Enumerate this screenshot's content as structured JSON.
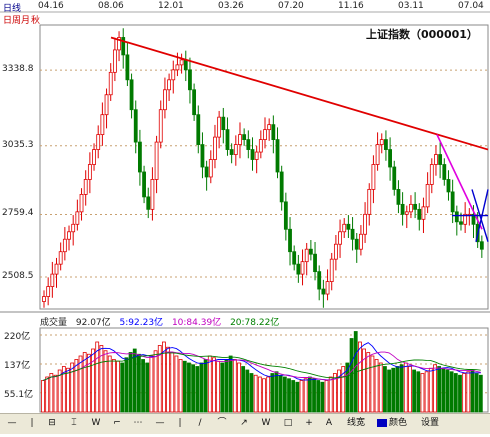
{
  "header": {
    "period_tabs": [
      "日线",
      "日周月",
      "秋"
    ],
    "dates": [
      "04.16",
      "08.06",
      "12.01",
      "03.26",
      "07.20",
      "11.16",
      "03.11",
      "07.04"
    ]
  },
  "title": "上证指数（000001）",
  "price_axis": {
    "ticks": [
      "3338.8",
      "3035.3",
      "2759.4",
      "2508.5"
    ]
  },
  "volume": {
    "label": "成交量",
    "total": "92.07亿",
    "ma5": "5:92.23亿",
    "ma10": "10:84.39亿",
    "ma20": "20:78.22亿",
    "ticks": [
      "220亿",
      "137亿",
      "55.1亿"
    ],
    "colors": {
      "ma5": "#0000ff",
      "ma10": "#c000c0",
      "ma20": "#008000"
    }
  },
  "toolbar": {
    "items": [
      "—",
      "|",
      "⊟",
      "⌶",
      "W",
      "⌐",
      "⋯",
      "—",
      "|",
      "/",
      "⌒",
      "↗",
      "W",
      "□",
      "+",
      "A",
      "线宽",
      "颜色",
      "设置"
    ]
  },
  "colors": {
    "up": "#e00000",
    "down": "#007a00",
    "trend_red": "#e00000",
    "trend_magenta": "#e000e0",
    "trend_blue": "#0000d0"
  },
  "chart_data": {
    "type": "candlestick",
    "title": "上证指数（000001）",
    "x_ticks": [
      "04.16",
      "08.06",
      "12.01",
      "03.26",
      "07.20",
      "11.16",
      "03.11",
      "07.04"
    ],
    "y_ticks": [
      3338.8,
      3035.3,
      2759.4,
      2508.5
    ],
    "ylim": [
      2380,
      3520
    ],
    "close_series": [
      2430,
      2470,
      2520,
      2560,
      2610,
      2660,
      2690,
      2720,
      2770,
      2840,
      2900,
      2960,
      3020,
      3080,
      3160,
      3240,
      3330,
      3420,
      3470,
      3400,
      3300,
      3180,
      3050,
      2930,
      2830,
      2780,
      2900,
      3050,
      3180,
      3260,
      3300,
      3340,
      3360,
      3380,
      3340,
      3260,
      3160,
      3040,
      2950,
      2910,
      2980,
      3070,
      3150,
      3100,
      3020,
      3000,
      3040,
      3080,
      3060,
      3020,
      2980,
      3010,
      3060,
      3100,
      3120,
      3060,
      2930,
      2810,
      2700,
      2610,
      2560,
      2520,
      2570,
      2620,
      2600,
      2530,
      2460,
      2440,
      2490,
      2580,
      2640,
      2690,
      2720,
      2700,
      2660,
      2620,
      2680,
      2760,
      2860,
      2960,
      3040,
      3060,
      3020,
      2950,
      2860,
      2800,
      2760,
      2770,
      2800,
      2780,
      2740,
      2790,
      2880,
      2960,
      3000,
      2960,
      2900,
      2850,
      2770,
      2730,
      2720,
      2760,
      2760,
      2720,
      2650,
      2620
    ],
    "volume_series": [
      90,
      100,
      110,
      105,
      120,
      130,
      125,
      140,
      150,
      160,
      170,
      165,
      180,
      200,
      190,
      175,
      160,
      150,
      145,
      140,
      155,
      170,
      180,
      165,
      150,
      140,
      160,
      175,
      190,
      200,
      185,
      170,
      160,
      150,
      145,
      140,
      135,
      130,
      140,
      150,
      160,
      155,
      145,
      140,
      150,
      160,
      150,
      140,
      130,
      120,
      110,
      105,
      100,
      95,
      100,
      110,
      115,
      105,
      100,
      95,
      90,
      85,
      90,
      95,
      100,
      95,
      90,
      85,
      90,
      100,
      110,
      120,
      130,
      140,
      210,
      230,
      200,
      180,
      170,
      160,
      150,
      140,
      130,
      120,
      125,
      130,
      135,
      140,
      130,
      120,
      115,
      110,
      115,
      125,
      135,
      130,
      125,
      120,
      115,
      110,
      105,
      110,
      115,
      120,
      110,
      105
    ],
    "trendlines": [
      {
        "color": "red",
        "from": [
          "08.06",
          3470
        ],
        "to": [
          "07.04+",
          3020
        ]
      },
      {
        "color": "magenta",
        "from": [
          "03.11",
          3080
        ],
        "to": [
          "07.04",
          2700
        ]
      },
      {
        "color": "blue",
        "from": [
          "07.04-",
          2740
        ],
        "to": [
          "07.04+",
          2760
        ]
      }
    ]
  }
}
